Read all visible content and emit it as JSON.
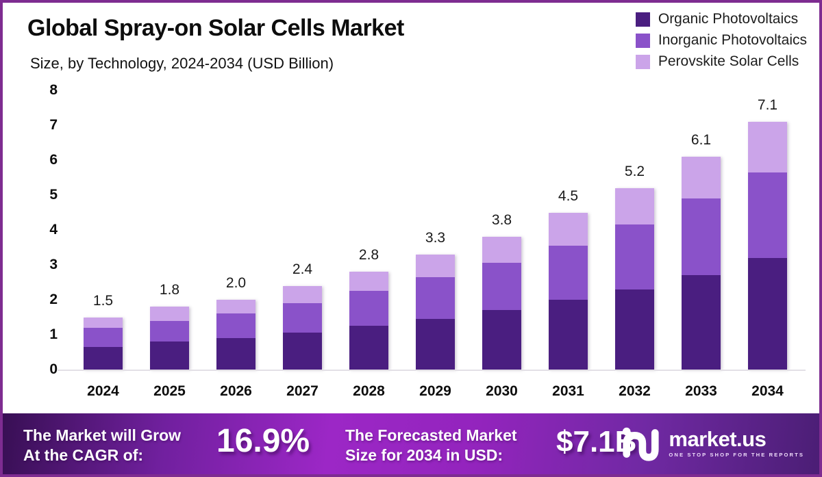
{
  "header": {
    "title": "Global Spray-on Solar Cells Market",
    "subtitle": "Size, by Technology, 2024-2034 (USD Billion)"
  },
  "legend": {
    "position": "top-right",
    "items": [
      {
        "label": "Organic Photovoltaics",
        "color": "#4A1E80"
      },
      {
        "label": "Inorganic Photovoltaics",
        "color": "#8A52C9"
      },
      {
        "label": "Perovskite Solar Cells",
        "color": "#CBA4E9"
      }
    ]
  },
  "chart_data": {
    "type": "bar",
    "stacked": true,
    "title": "Global Spray-on Solar Cells Market",
    "subtitle": "Size, by Technology, 2024-2034 (USD Billion)",
    "unit": "USD Billion",
    "categories": [
      "2024",
      "2025",
      "2026",
      "2027",
      "2028",
      "2029",
      "2030",
      "2031",
      "2032",
      "2033",
      "2034"
    ],
    "series": [
      {
        "name": "Organic Photovoltaics",
        "color": "#4A1E80",
        "values": [
          0.65,
          0.8,
          0.9,
          1.05,
          1.25,
          1.45,
          1.7,
          2.0,
          2.3,
          2.7,
          3.2
        ]
      },
      {
        "name": "Inorganic Photovoltaics",
        "color": "#8A52C9",
        "values": [
          0.55,
          0.6,
          0.7,
          0.85,
          1.0,
          1.2,
          1.35,
          1.55,
          1.85,
          2.2,
          2.45
        ]
      },
      {
        "name": "Perovskite Solar Cells",
        "color": "#CBA4E9",
        "values": [
          0.3,
          0.4,
          0.4,
          0.5,
          0.55,
          0.65,
          0.75,
          0.95,
          1.05,
          1.2,
          1.45
        ]
      }
    ],
    "total_labels": [
      "1.5",
      "1.8",
      "2.0",
      "2.4",
      "2.8",
      "3.3",
      "3.8",
      "4.5",
      "5.2",
      "6.1",
      "7.1"
    ],
    "ylim": [
      0,
      8
    ],
    "yticks": [
      "0",
      "1",
      "2",
      "3",
      "4",
      "5",
      "6",
      "7",
      "8"
    ],
    "grid": false,
    "legend_position": "top-right"
  },
  "banner": {
    "cagr_label_line1": "The Market will Grow",
    "cagr_label_line2": "At the CAGR of:",
    "cagr_value": "16.9%",
    "forecast_label_line1": "The Forecasted Market",
    "forecast_label_line2": "Size for 2034 in USD:",
    "forecast_value": "$7.1B",
    "logo_name": "market.us",
    "logo_tagline": "ONE STOP SHOP FOR THE REPORTS"
  },
  "colors": {
    "frame_border": "#7E2C91",
    "axis_line": "#E3E0E6",
    "banner_gradient_start": "#380F54",
    "banner_gradient_mid": "#9C27C6",
    "banner_gradient_end": "#4B1E75",
    "text_dark": "#0D0D0D",
    "text_white": "#FFFFFF"
  }
}
